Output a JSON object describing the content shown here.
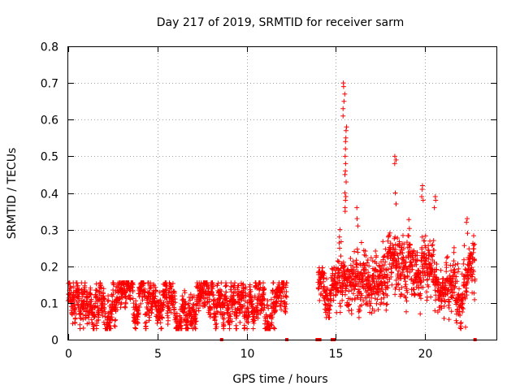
{
  "chart_data": {
    "type": "scatter",
    "title": "Day 217 of 2019, SRMTID for receiver sarm",
    "xlabel": "GPS time / hours",
    "ylabel": "SRMTID / TECUs",
    "xlim": [
      0,
      24
    ],
    "ylim": [
      0,
      0.8
    ],
    "x_ticks": [
      0,
      5,
      10,
      15,
      20
    ],
    "x_tick_labels": [
      "0",
      "5",
      "10",
      "15",
      "20"
    ],
    "y_ticks": [
      0,
      0.1,
      0.2,
      0.3,
      0.4,
      0.5,
      0.6,
      0.7,
      0.8
    ],
    "y_tick_labels": [
      "0",
      "0.1",
      "0.2",
      "0.3",
      "0.4",
      "0.5",
      "0.6",
      "0.7",
      "0.8"
    ],
    "grid": true,
    "marker": "+",
    "color": "#ff0000",
    "series": [
      {
        "name": "sarm",
        "segments": [
          {
            "x_start": 0.0,
            "x_end": 12.25,
            "mean": 0.1,
            "spread": 0.035,
            "max": 0.2,
            "min": 0.03
          },
          {
            "x_start": 14.0,
            "x_end": 15.0,
            "mean": 0.13,
            "spread": 0.04,
            "max": 0.25,
            "min": 0.06
          },
          {
            "x_start": 15.0,
            "x_end": 17.5,
            "mean": 0.17,
            "spread": 0.06,
            "max": 0.7,
            "min": 0.06
          },
          {
            "x_start": 17.5,
            "x_end": 20.5,
            "mean": 0.2,
            "spread": 0.06,
            "max": 0.5,
            "min": 0.05
          },
          {
            "x_start": 20.5,
            "x_end": 22.8,
            "mean": 0.16,
            "spread": 0.05,
            "max": 0.41,
            "min": 0.03
          }
        ],
        "spikes": [
          {
            "x": 15.45,
            "values": [
              0.7,
              0.69,
              0.67,
              0.65,
              0.63,
              0.61
            ]
          },
          {
            "x": 15.55,
            "values": [
              0.58,
              0.57,
              0.55,
              0.54,
              0.52,
              0.5,
              0.48,
              0.46,
              0.45,
              0.43,
              0.4,
              0.39,
              0.38,
              0.36,
              0.35
            ]
          },
          {
            "x": 18.35,
            "values": [
              0.5,
              0.49,
              0.48,
              0.4,
              0.37
            ]
          },
          {
            "x": 19.85,
            "values": [
              0.42,
              0.41,
              0.39,
              0.38
            ]
          },
          {
            "x": 20.55,
            "values": [
              0.39,
              0.38,
              0.36
            ]
          },
          {
            "x": 16.2,
            "values": [
              0.36,
              0.33,
              0.31
            ]
          },
          {
            "x": 15.25,
            "values": [
              0.3,
              0.28
            ]
          },
          {
            "x": 22.35,
            "values": [
              0.33,
              0.32,
              0.29
            ]
          }
        ],
        "zero_points": [
          8.6,
          12.25,
          13.95,
          14.1,
          14.8,
          14.9,
          22.8
        ]
      }
    ]
  }
}
